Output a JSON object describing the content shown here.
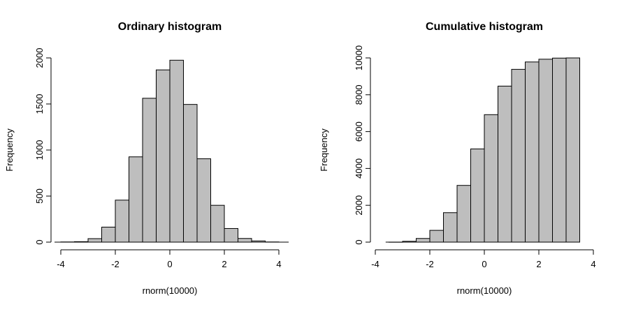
{
  "figure": {
    "background": "#ffffff",
    "text_color": "#000000",
    "bar_fill": "#bebebe",
    "bar_stroke": "#000000",
    "axis_color": "#000000"
  },
  "chart_data": [
    {
      "type": "bar",
      "subtype": "histogram",
      "title": "Ordinary histogram",
      "xlabel": "rnorm(10000)",
      "ylabel": "Frequency",
      "bin_start": -4,
      "bin_width": 0.5,
      "counts": [
        2,
        5,
        38,
        163,
        456,
        926,
        1562,
        1870,
        1975,
        1495,
        905,
        400,
        148,
        40,
        13,
        2
      ],
      "x_ticks": [
        -4,
        -2,
        0,
        2,
        4
      ],
      "y_ticks": [
        0,
        500,
        1000,
        1500,
        2000
      ],
      "xlim": [
        -4,
        4
      ],
      "ylim": [
        0,
        2000
      ],
      "baseline_extent": [
        -4.23,
        4.36
      ],
      "grid": false,
      "legend": false
    },
    {
      "type": "bar",
      "subtype": "cumulative-histogram",
      "title": "Cumulative histogram",
      "xlabel": "rnorm(10000)",
      "ylabel": "Frequency",
      "bin_start": -3.5,
      "bin_width": 0.5,
      "counts": [
        2,
        45,
        200,
        640,
        1600,
        3080,
        5060,
        6920,
        8470,
        9380,
        9780,
        9930,
        9990,
        10000
      ],
      "x_ticks": [
        -4,
        -2,
        0,
        2,
        4
      ],
      "y_ticks": [
        0,
        2000,
        4000,
        6000,
        8000,
        10000
      ],
      "xlim": [
        -4,
        4
      ],
      "ylim": [
        0,
        10000
      ],
      "baseline_extent": [
        -3.62,
        3.5
      ],
      "grid": false,
      "legend": false
    }
  ]
}
